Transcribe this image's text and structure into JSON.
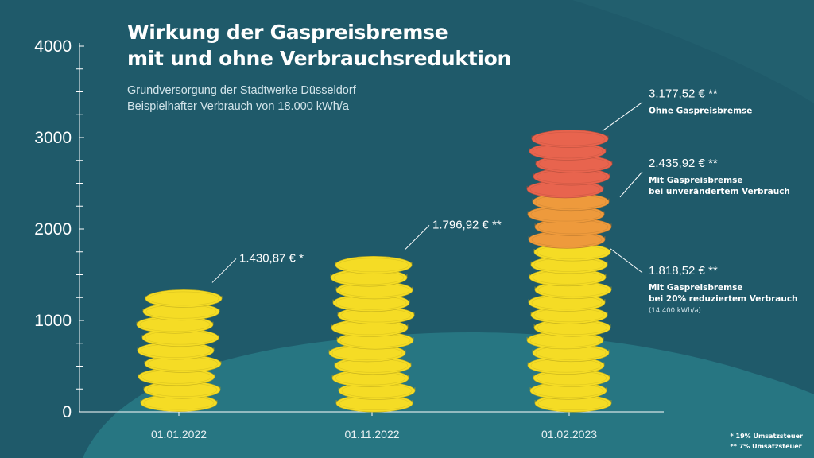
{
  "title_line1": "Wirkung der Gaspreisbremse",
  "title_line2": "mit und ohne Verbrauchsreduktion",
  "subtitle_line1": "Grundversorgung der Stadtwerke Düsseldorf",
  "subtitle_line2": "Beispielhafter Verbrauch von 18.000 kWh/a",
  "footnote_1": "* 19% Umsatzsteuer",
  "footnote_2": "** 7% Umsatzsteuer",
  "colors": {
    "background": "#1f5a6a",
    "hill": "#277682",
    "coin_gold": "#f5dc25",
    "coin_orange": "#ee9a3c",
    "coin_red": "#e8644e",
    "axis": "#ffffff"
  },
  "chart_data": {
    "type": "bar",
    "visual_style": "stacked coin columns",
    "categories": [
      "01.01.2022",
      "01.11.2022",
      "01.02.2023"
    ],
    "ylim": [
      0,
      4000
    ],
    "yticks": [
      "0",
      "1000",
      "2000",
      "3000",
      "4000"
    ],
    "bars": [
      {
        "category": "01.01.2022",
        "value": 1430.87,
        "segments": [
          {
            "from": 0,
            "to": 1430.87,
            "color": "gold"
          }
        ],
        "annotations": [
          {
            "value_label": "1.430,87 € *",
            "description": []
          }
        ]
      },
      {
        "category": "01.11.2022",
        "value": 1796.92,
        "segments": [
          {
            "from": 0,
            "to": 1796.92,
            "color": "gold"
          }
        ],
        "annotations": [
          {
            "value_label": "1.796,92 € **",
            "description": []
          }
        ]
      },
      {
        "category": "01.02.2023",
        "value": 3177.52,
        "segments": [
          {
            "from": 0,
            "to": 1818.52,
            "color": "gold"
          },
          {
            "from": 1818.52,
            "to": 2435.92,
            "color": "orange"
          },
          {
            "from": 2435.92,
            "to": 3177.52,
            "color": "red"
          }
        ],
        "annotations": [
          {
            "value_label": "3.177,52 € **",
            "value": 3177.52,
            "description": [
              "Ohne Gaspreisbremse"
            ]
          },
          {
            "value_label": "2.435,92 € **",
            "value": 2435.92,
            "description": [
              "Mit Gaspreisbremse",
              "bei unverändertem Verbrauch"
            ]
          },
          {
            "value_label": "1.818,52 € **",
            "value": 1818.52,
            "description": [
              "Mit Gaspreisbremse",
              "bei 20% reduziertem Verbrauch"
            ],
            "note": "(14.400 kWh/a)"
          }
        ]
      }
    ]
  }
}
